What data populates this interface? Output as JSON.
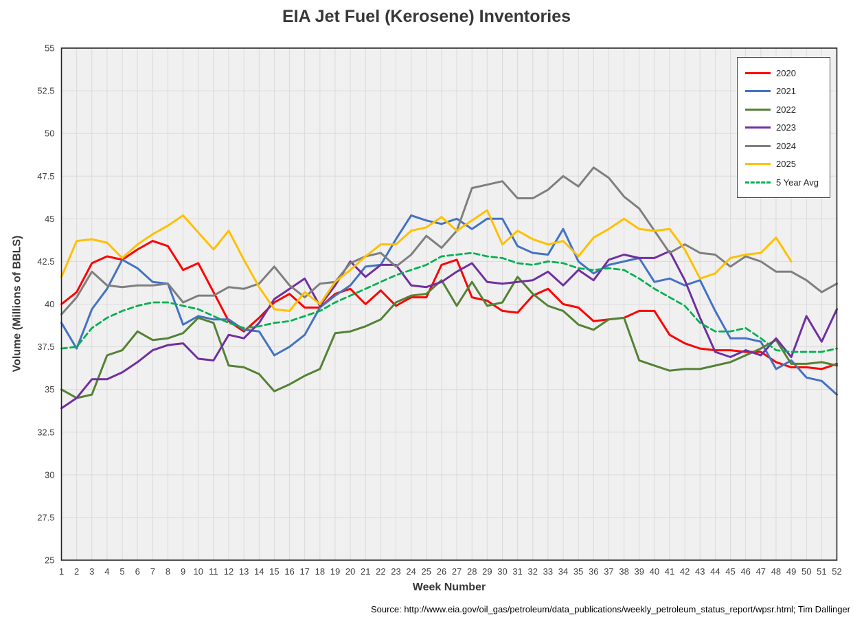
{
  "page": {
    "source": "Source: http://www.eia.gov/oil_gas/petroleum/data_publications/weekly_petroleum_status_report/wpsr.html; Tim Dallinger"
  },
  "colors": {
    "plot_bg": "#F0F0F0",
    "gridline": "#DADADA",
    "plot_border": "#262626",
    "tick_text": "#404040"
  },
  "chart_data": {
    "type": "line",
    "title": "EIA Jet Fuel (Kerosene) Inventories",
    "xlabel": "Week Number",
    "ylabel": "Volume (Millions of BBLS)",
    "x": [
      1,
      2,
      3,
      4,
      5,
      6,
      7,
      8,
      9,
      10,
      11,
      12,
      13,
      14,
      15,
      16,
      17,
      18,
      19,
      20,
      21,
      22,
      23,
      24,
      25,
      26,
      27,
      28,
      29,
      30,
      31,
      32,
      33,
      34,
      35,
      36,
      37,
      38,
      39,
      40,
      41,
      42,
      43,
      44,
      45,
      46,
      47,
      48,
      49,
      50,
      51,
      52
    ],
    "ylim": [
      25,
      55
    ],
    "ytick_step": 2.5,
    "grid": true,
    "legend_position": "top-right",
    "series": [
      {
        "name": "2020",
        "color": "#FF0000",
        "dash": false,
        "values": [
          40.0,
          40.7,
          42.4,
          42.8,
          42.6,
          43.2,
          43.7,
          43.4,
          42.0,
          42.4,
          40.7,
          39.0,
          38.4,
          39.2,
          40.1,
          40.6,
          39.8,
          39.8,
          40.6,
          40.9,
          40.0,
          40.8,
          39.9,
          40.4,
          40.4,
          42.3,
          42.6,
          40.4,
          40.2,
          39.6,
          39.5,
          40.5,
          40.9,
          40.0,
          39.8,
          39.0,
          39.1,
          39.2,
          39.6,
          39.6,
          38.2,
          37.7,
          37.4,
          37.3,
          37.3,
          37.2,
          37.2,
          36.6,
          36.3,
          36.3,
          36.2,
          36.5
        ]
      },
      {
        "name": "2021",
        "color": "#4472C4",
        "dash": false,
        "values": [
          38.9,
          37.4,
          39.7,
          40.9,
          42.6,
          42.1,
          41.3,
          41.2,
          38.8,
          39.3,
          39.1,
          39.1,
          38.5,
          38.4,
          37.0,
          37.5,
          38.2,
          39.8,
          40.5,
          41.1,
          42.2,
          42.3,
          43.8,
          45.2,
          44.9,
          44.7,
          45.0,
          44.4,
          45.0,
          45.0,
          43.4,
          43.0,
          42.9,
          44.4,
          42.5,
          41.8,
          42.3,
          42.5,
          42.7,
          41.3,
          41.5,
          41.1,
          41.4,
          39.6,
          38.0,
          38.0,
          37.8,
          36.2,
          36.7,
          35.7,
          35.5,
          34.7
        ]
      },
      {
        "name": "2022",
        "color": "#548235",
        "dash": false,
        "values": [
          35.0,
          34.5,
          34.7,
          37.0,
          37.3,
          38.4,
          37.9,
          38.0,
          38.3,
          39.2,
          38.9,
          36.4,
          36.3,
          35.9,
          34.9,
          35.3,
          35.8,
          36.2,
          38.3,
          38.4,
          38.7,
          39.1,
          40.1,
          40.5,
          40.6,
          41.4,
          39.9,
          41.3,
          39.9,
          40.1,
          41.6,
          40.6,
          39.9,
          39.6,
          38.8,
          38.5,
          39.1,
          39.2,
          36.7,
          36.4,
          36.1,
          36.2,
          36.2,
          36.4,
          36.6,
          37.0,
          37.4,
          37.9,
          36.5,
          36.5,
          36.6,
          36.4
        ]
      },
      {
        "name": "2023",
        "color": "#7030A0",
        "dash": false,
        "values": [
          33.9,
          34.5,
          35.6,
          35.6,
          36.0,
          36.6,
          37.3,
          37.6,
          37.7,
          36.8,
          36.7,
          38.2,
          38.0,
          38.9,
          40.3,
          40.9,
          41.5,
          39.9,
          41.1,
          42.5,
          41.6,
          42.3,
          42.3,
          41.1,
          41.0,
          41.3,
          41.9,
          42.4,
          41.3,
          41.2,
          41.3,
          41.4,
          41.9,
          41.1,
          42.0,
          41.4,
          42.6,
          42.9,
          42.7,
          42.7,
          43.1,
          41.4,
          39.2,
          37.2,
          36.9,
          37.3,
          37.0,
          38.0,
          36.9,
          39.3,
          37.8,
          39.7
        ]
      },
      {
        "name": "2024",
        "color": "#7F7F7F",
        "dash": false,
        "values": [
          39.4,
          40.4,
          41.9,
          41.1,
          41.0,
          41.1,
          41.1,
          41.2,
          40.1,
          40.5,
          40.5,
          41.0,
          40.9,
          41.2,
          42.2,
          41.1,
          40.4,
          41.2,
          41.3,
          42.4,
          42.8,
          43.0,
          42.2,
          42.9,
          44.0,
          43.3,
          44.3,
          46.8,
          47.0,
          47.2,
          46.2,
          46.2,
          46.7,
          47.5,
          46.9,
          48.0,
          47.4,
          46.3,
          45.6,
          44.3,
          43.0,
          43.5,
          43.0,
          42.9,
          42.2,
          42.8,
          42.5,
          41.9,
          41.9,
          41.4,
          40.7,
          41.2
        ]
      },
      {
        "name": "2025",
        "color": "#FFC000",
        "dash": false,
        "values": [
          41.6,
          43.7,
          43.8,
          43.6,
          42.7,
          43.5,
          44.1,
          44.6,
          45.2,
          44.2,
          43.2,
          44.3,
          42.6,
          41.0,
          39.7,
          39.6,
          40.7,
          40.0,
          41.3,
          42.0,
          42.8,
          43.5,
          43.5,
          44.3,
          44.5,
          45.1,
          44.3,
          44.9,
          45.5,
          43.5,
          44.3,
          43.8,
          43.5,
          43.7,
          42.8,
          43.9,
          44.4,
          45.0,
          44.4,
          44.3,
          44.4,
          43.2,
          41.5,
          41.8,
          42.7,
          42.9,
          43.0,
          43.9,
          42.5,
          null,
          null,
          null
        ]
      },
      {
        "name": "5 Year Avg",
        "color": "#00B050",
        "dash": true,
        "values": [
          37.4,
          37.5,
          38.6,
          39.2,
          39.6,
          39.9,
          40.1,
          40.1,
          39.9,
          39.7,
          39.3,
          38.9,
          38.6,
          38.7,
          38.9,
          39.0,
          39.3,
          39.6,
          40.1,
          40.5,
          40.9,
          41.3,
          41.7,
          42.0,
          42.3,
          42.8,
          42.9,
          43.0,
          42.8,
          42.7,
          42.4,
          42.3,
          42.5,
          42.4,
          42.1,
          42.0,
          42.1,
          42.0,
          41.5,
          40.9,
          40.4,
          39.9,
          38.9,
          38.4,
          38.4,
          38.6,
          38.0,
          37.3,
          37.2,
          37.2,
          37.2,
          37.4
        ]
      }
    ]
  }
}
